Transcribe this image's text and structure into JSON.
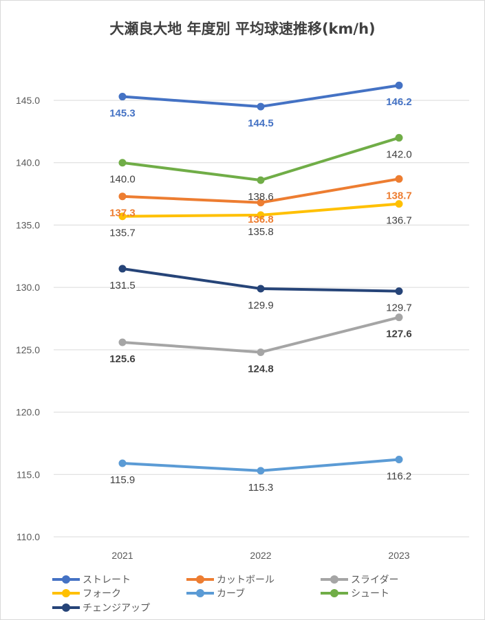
{
  "chart_data": {
    "type": "line",
    "title": "大瀬良大地 年度別 平均球速推移(km/h)",
    "categories": [
      "2021",
      "2022",
      "2023"
    ],
    "ylim": [
      110,
      147
    ],
    "yticks": [
      "110.0",
      "115.0",
      "120.0",
      "125.0",
      "130.0",
      "135.0",
      "140.0",
      "145.0"
    ],
    "ytick_values": [
      110,
      115,
      120,
      125,
      130,
      135,
      140,
      145
    ],
    "grid": true,
    "legend_position": "bottom",
    "series": [
      {
        "name": "ストレート",
        "values": [
          145.3,
          144.5,
          146.2
        ],
        "labels": [
          "145.3",
          "144.5",
          "146.2"
        ],
        "color": "#4472C4",
        "label_color": "#4472C4",
        "label_bold": true
      },
      {
        "name": "カットボール",
        "values": [
          137.3,
          136.8,
          138.7
        ],
        "labels": [
          "137.3",
          "136.8",
          "138.7"
        ],
        "color": "#ED7D31",
        "label_color": "#ED7D31",
        "label_bold": true
      },
      {
        "name": "スライダー",
        "values": [
          125.6,
          124.8,
          127.6
        ],
        "labels": [
          "125.6",
          "124.8",
          "127.6"
        ],
        "color": "#A5A5A5",
        "label_color": "#404040",
        "label_bold": true
      },
      {
        "name": "フォーク",
        "values": [
          135.7,
          135.8,
          136.7
        ],
        "labels": [
          "135.7",
          "135.8",
          "136.7"
        ],
        "color": "#FFC000",
        "label_color": "#404040",
        "label_bold": false
      },
      {
        "name": "カーブ",
        "values": [
          115.9,
          115.3,
          116.2
        ],
        "labels": [
          "115.9",
          "115.3",
          "116.2"
        ],
        "color": "#5B9BD5",
        "label_color": "#404040",
        "label_bold": false
      },
      {
        "name": "シュート",
        "values": [
          140.0,
          138.6,
          142.0
        ],
        "labels": [
          "140.0",
          "138.6",
          "142.0"
        ],
        "color": "#70AD47",
        "label_color": "#404040",
        "label_bold": false
      },
      {
        "name": "チェンジアップ",
        "values": [
          131.5,
          129.9,
          129.7
        ],
        "labels": [
          "131.5",
          "129.9",
          "129.7"
        ],
        "color": "#264478",
        "label_color": "#404040",
        "label_bold": false
      }
    ]
  }
}
